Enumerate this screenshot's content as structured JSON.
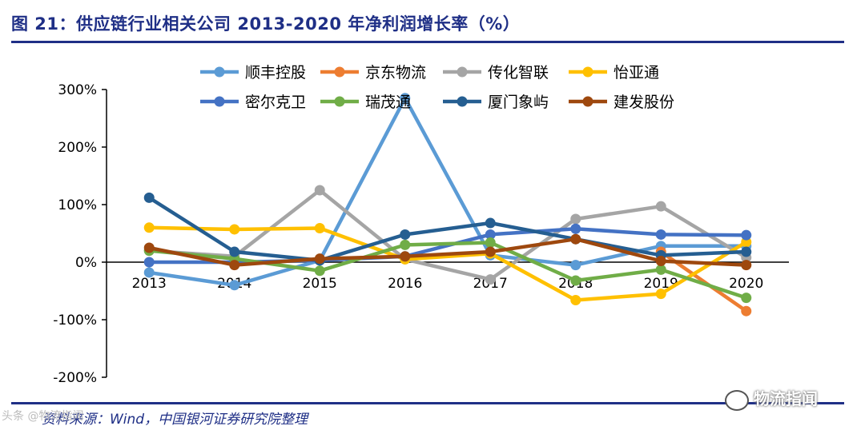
{
  "title": "图 21：供应链行业相关公司 2013-2020 年净利润增长率（%）",
  "source": "资料来源：Wind，中国银河证券研究院整理",
  "watermark_right": "物流指闻",
  "watermark_left": "头条 @物流指闻",
  "chart_data": {
    "type": "line",
    "title": "图 21：供应链行业相关公司 2013-2020 年净利润增长率（%）",
    "xlabel": "",
    "ylabel": "",
    "categories": [
      "2013",
      "2014",
      "2015",
      "2016",
      "2017",
      "2018",
      "2019",
      "2020"
    ],
    "ylim": [
      -200,
      300
    ],
    "yticks": [
      300,
      200,
      100,
      0,
      -100,
      -200
    ],
    "ytick_labels": [
      "300%",
      "200%",
      "100%",
      "0%",
      "-100%",
      "-200%"
    ],
    "legend_position": "top",
    "series": [
      {
        "name": "顺丰控股",
        "color": "#5b9bd5",
        "values": [
          -18,
          -40,
          3,
          285,
          12,
          -5,
          28,
          28
        ]
      },
      {
        "name": "京东物流",
        "color": "#ed7d31",
        "values": [
          null,
          null,
          null,
          null,
          null,
          null,
          18,
          -85
        ]
      },
      {
        "name": "传化智联",
        "color": "#a5a5a5",
        "values": [
          20,
          10,
          125,
          5,
          -30,
          75,
          97,
          8
        ]
      },
      {
        "name": "怡亚通",
        "color": "#ffc000",
        "values": [
          60,
          57,
          59,
          5,
          15,
          -66,
          -55,
          35
        ]
      },
      {
        "name": "密尔克卫",
        "color": "#4472c4",
        "values": [
          0,
          0,
          3,
          10,
          48,
          58,
          48,
          47
        ]
      },
      {
        "name": "瑞茂通",
        "color": "#70ad47",
        "values": [
          20,
          6,
          -15,
          30,
          34,
          -32,
          -13,
          -62
        ]
      },
      {
        "name": "厦门象屿",
        "color": "#255e91",
        "values": [
          112,
          18,
          3,
          48,
          68,
          40,
          12,
          18
        ]
      },
      {
        "name": "建发股份",
        "color": "#9e480e",
        "values": [
          25,
          -5,
          6,
          10,
          18,
          40,
          2,
          -5
        ]
      }
    ]
  }
}
